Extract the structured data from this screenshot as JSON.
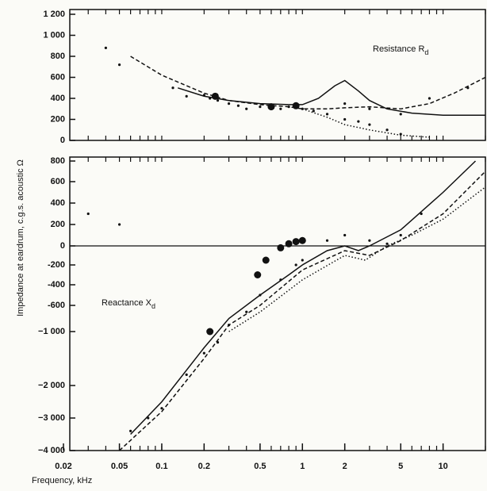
{
  "chart_data": [
    {
      "type": "line",
      "ylabel": "Impedance at eardrum, c.g.s. acoustic Ω",
      "annotation": {
        "text": "Resistance R",
        "sub": "d"
      },
      "xscale": "log",
      "xlim": [
        0.02,
        20
      ],
      "ylim": [
        0,
        1200
      ],
      "yticks": [
        0,
        200,
        400,
        600,
        800,
        {
          "value": 1000,
          "label": "1 000"
        },
        {
          "value": 1200,
          "label": "1 200"
        }
      ],
      "series": [
        {
          "type": "line",
          "style": "solid",
          "color": "#111",
          "x": [
            0.13,
            0.2,
            0.3,
            0.5,
            0.8,
            1,
            1.3,
            1.7,
            2,
            2.5,
            3,
            4,
            6,
            10,
            20
          ],
          "values": [
            500,
            420,
            380,
            350,
            340,
            340,
            400,
            520,
            570,
            470,
            380,
            300,
            260,
            240,
            240
          ]
        },
        {
          "type": "line",
          "style": "dashed",
          "color": "#111",
          "x": [
            0.06,
            0.1,
            0.2,
            0.3,
            0.5,
            0.8,
            1,
            1.5,
            2,
            3,
            5,
            8,
            12,
            20
          ],
          "values": [
            800,
            620,
            450,
            380,
            340,
            320,
            300,
            300,
            310,
            320,
            300,
            350,
            450,
            600
          ]
        },
        {
          "type": "line",
          "style": "dotted",
          "color": "#111",
          "x": [
            1,
            1.5,
            2,
            3,
            5,
            8
          ],
          "values": [
            300,
            220,
            150,
            100,
            50,
            30
          ]
        },
        {
          "type": "scatter",
          "marker": "small",
          "color": "#111",
          "x": [
            0.04,
            0.05,
            0.12,
            0.15,
            0.2,
            0.22,
            0.25,
            0.3,
            0.35,
            0.4,
            0.5,
            0.6,
            0.7,
            0.8,
            0.9,
            1,
            1.2,
            1.5,
            2,
            2.5,
            3,
            4,
            5,
            2,
            3,
            5,
            8,
            15
          ],
          "values": [
            880,
            720,
            500,
            420,
            430,
            400,
            380,
            350,
            330,
            300,
            320,
            340,
            300,
            320,
            310,
            300,
            280,
            250,
            200,
            180,
            150,
            100,
            60,
            350,
            300,
            250,
            400,
            500
          ]
        },
        {
          "type": "scatter",
          "marker": "large",
          "color": "#111",
          "x": [
            0.24,
            0.6,
            0.9
          ],
          "values": [
            420,
            320,
            330
          ]
        }
      ]
    },
    {
      "type": "line",
      "xlabel": "Frequency, kHz",
      "annotation": {
        "text": "Reactance X",
        "sub": "d"
      },
      "xscale": "log",
      "xlim": [
        0.02,
        20
      ],
      "xticks": [
        0.02,
        0.05,
        0.1,
        0.2,
        0.5,
        1,
        2,
        5,
        10
      ],
      "ylim": [
        -4000,
        800
      ],
      "yticks": [
        800,
        600,
        400,
        200,
        0,
        -200,
        -400,
        -600,
        {
          "value": -1000,
          "label": "−1 000"
        },
        {
          "value": -2000,
          "label": "−2 000"
        },
        {
          "value": -3000,
          "label": "−3 000"
        },
        {
          "value": -4000,
          "label": "−4 000"
        }
      ],
      "series": [
        {
          "type": "line",
          "style": "solid",
          "color": "#111",
          "x": [
            0.06,
            0.1,
            0.2,
            0.3,
            0.5,
            0.8,
            1,
            1.5,
            2,
            2.5,
            3,
            5,
            10,
            17
          ],
          "values": [
            -3500,
            -2500,
            -1300,
            -800,
            -500,
            -300,
            -200,
            -50,
            0,
            -50,
            0,
            150,
            500,
            800
          ]
        },
        {
          "type": "line",
          "style": "dashed",
          "color": "#111",
          "x": [
            0.05,
            0.1,
            0.2,
            0.3,
            0.5,
            1,
            2,
            3,
            5,
            10,
            20
          ],
          "values": [
            -4000,
            -2800,
            -1500,
            -900,
            -600,
            -250,
            -50,
            -100,
            50,
            300,
            700
          ]
        },
        {
          "type": "line",
          "style": "dotted",
          "color": "#111",
          "x": [
            0.3,
            0.5,
            1,
            2,
            2.8,
            4,
            6,
            10,
            20
          ],
          "values": [
            -1000,
            -700,
            -350,
            -100,
            -150,
            0,
            100,
            250,
            550
          ]
        },
        {
          "type": "scatter",
          "marker": "small",
          "color": "#111",
          "x": [
            0.03,
            0.05,
            0.06,
            0.08,
            0.1,
            0.15,
            0.2,
            0.25,
            0.3,
            0.4,
            0.5,
            0.7,
            0.9,
            1,
            1.5,
            2,
            3,
            4,
            5,
            7
          ],
          "values": [
            300,
            200,
            -3400,
            -3000,
            -2700,
            -1800,
            -1400,
            -1200,
            -900,
            -700,
            -500,
            -350,
            -200,
            -150,
            50,
            100,
            50,
            20,
            100,
            300
          ]
        },
        {
          "type": "scatter",
          "marker": "large",
          "color": "#111",
          "x": [
            0.22,
            0.48,
            0.55,
            0.7,
            0.8,
            0.9,
            1
          ],
          "values": [
            -1000,
            -300,
            -150,
            -20,
            20,
            40,
            50
          ]
        }
      ]
    }
  ]
}
